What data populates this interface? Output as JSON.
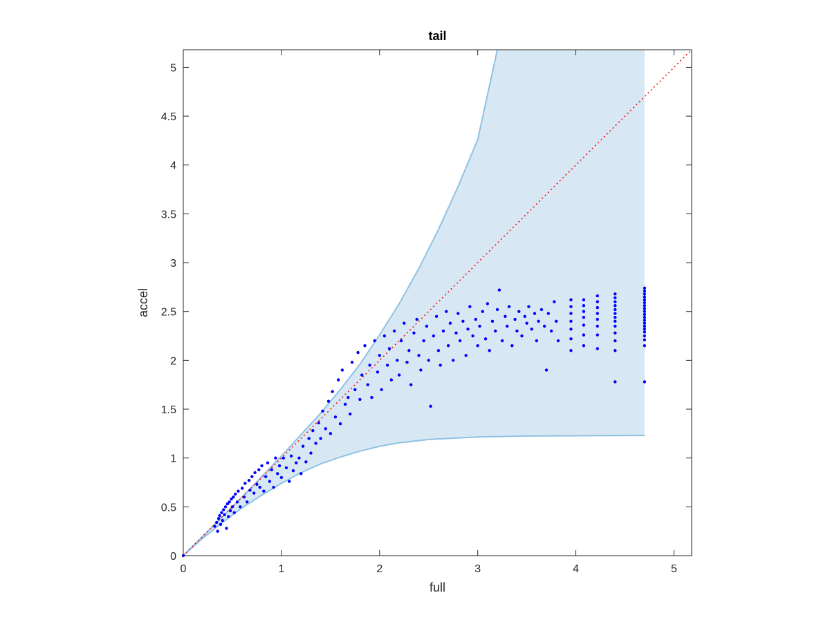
{
  "chart_data": {
    "type": "scatter",
    "title": "tail",
    "xlabel": "full",
    "ylabel": "accel",
    "xlim": [
      0,
      5.18
    ],
    "ylim": [
      0,
      5.18
    ],
    "xticks": [
      "0",
      "1",
      "2",
      "3",
      "4",
      "5"
    ],
    "yticks": [
      "0",
      "0.5",
      "1",
      "1.5",
      "2",
      "2.5",
      "3",
      "3.5",
      "4",
      "4.5",
      "5"
    ],
    "grid": false,
    "box": true,
    "reference_line": {
      "style": "dotted",
      "color": "#ff0000",
      "x": [
        0,
        5.18
      ],
      "y": [
        0,
        5.18
      ]
    },
    "band": {
      "fill": "#d7e8f4",
      "edge": "#8fc1e2",
      "upper": {
        "x": [
          0,
          0.2,
          0.4,
          0.6,
          0.8,
          1.0,
          1.2,
          1.4,
          1.6,
          1.8,
          2.0,
          2.2,
          2.4,
          2.6,
          2.8,
          3.0,
          3.2
        ],
        "y": [
          0,
          0.2,
          0.4,
          0.6,
          0.81,
          1.02,
          1.24,
          1.46,
          1.7,
          1.96,
          2.26,
          2.58,
          2.94,
          3.34,
          3.78,
          4.26,
          5.18
        ]
      },
      "lower": {
        "x": [
          0,
          0.2,
          0.4,
          0.6,
          0.8,
          1.0,
          1.2,
          1.4,
          1.6,
          1.8,
          2.0,
          2.2,
          2.5,
          3.0,
          3.5,
          4.0,
          4.7
        ],
        "y": [
          0,
          0.18,
          0.34,
          0.49,
          0.62,
          0.74,
          0.85,
          0.94,
          1.01,
          1.07,
          1.12,
          1.155,
          1.19,
          1.215,
          1.225,
          1.228,
          1.23
        ]
      },
      "x_max": 4.7
    },
    "series": [
      {
        "color": "#0000ff",
        "points": [
          [
            0.0,
            0.0
          ],
          [
            0.32,
            0.3
          ],
          [
            0.34,
            0.34
          ],
          [
            0.35,
            0.25
          ],
          [
            0.36,
            0.38
          ],
          [
            0.37,
            0.41
          ],
          [
            0.38,
            0.32
          ],
          [
            0.39,
            0.44
          ],
          [
            0.4,
            0.36
          ],
          [
            0.41,
            0.47
          ],
          [
            0.42,
            0.42
          ],
          [
            0.43,
            0.5
          ],
          [
            0.44,
            0.28
          ],
          [
            0.45,
            0.53
          ],
          [
            0.46,
            0.4
          ],
          [
            0.47,
            0.55
          ],
          [
            0.48,
            0.46
          ],
          [
            0.49,
            0.58
          ],
          [
            0.5,
            0.5
          ],
          [
            0.51,
            0.6
          ],
          [
            0.52,
            0.44
          ],
          [
            0.53,
            0.63
          ],
          [
            0.55,
            0.55
          ],
          [
            0.56,
            0.66
          ],
          [
            0.58,
            0.5
          ],
          [
            0.6,
            0.69
          ],
          [
            0.62,
            0.6
          ],
          [
            0.63,
            0.74
          ],
          [
            0.65,
            0.55
          ],
          [
            0.67,
            0.77
          ],
          [
            0.68,
            0.67
          ],
          [
            0.7,
            0.81
          ],
          [
            0.72,
            0.64
          ],
          [
            0.73,
            0.85
          ],
          [
            0.75,
            0.73
          ],
          [
            0.77,
            0.88
          ],
          [
            0.78,
            0.7
          ],
          [
            0.8,
            0.92
          ],
          [
            0.82,
            0.66
          ],
          [
            0.84,
            0.81
          ],
          [
            0.86,
            0.95
          ],
          [
            0.88,
            0.76
          ],
          [
            0.9,
            0.88
          ],
          [
            0.92,
            0.7
          ],
          [
            0.94,
            1.0
          ],
          [
            0.96,
            0.84
          ],
          [
            0.98,
            0.92
          ],
          [
            1.0,
            0.8
          ],
          [
            1.02,
            1.0
          ],
          [
            1.05,
            0.9
          ],
          [
            1.08,
            0.76
          ],
          [
            1.1,
            1.02
          ],
          [
            1.12,
            0.87
          ],
          [
            1.15,
            0.95
          ],
          [
            1.18,
            1.0
          ],
          [
            1.2,
            0.84
          ],
          [
            1.22,
            1.12
          ],
          [
            1.25,
            0.96
          ],
          [
            1.28,
            1.2
          ],
          [
            1.3,
            1.05
          ],
          [
            1.32,
            1.28
          ],
          [
            1.35,
            1.15
          ],
          [
            1.38,
            1.36
          ],
          [
            1.4,
            1.2
          ],
          [
            1.42,
            1.48
          ],
          [
            1.45,
            1.3
          ],
          [
            1.48,
            1.58
          ],
          [
            1.5,
            1.25
          ],
          [
            1.52,
            1.68
          ],
          [
            1.55,
            1.42
          ],
          [
            1.58,
            1.8
          ],
          [
            1.6,
            1.35
          ],
          [
            1.62,
            1.9
          ],
          [
            1.65,
            1.55
          ],
          [
            1.68,
            1.62
          ],
          [
            1.7,
            1.45
          ],
          [
            1.72,
            1.98
          ],
          [
            1.75,
            1.7
          ],
          [
            1.78,
            2.08
          ],
          [
            1.8,
            1.6
          ],
          [
            1.82,
            1.85
          ],
          [
            1.85,
            2.15
          ],
          [
            1.88,
            1.75
          ],
          [
            1.9,
            1.95
          ],
          [
            1.92,
            1.62
          ],
          [
            1.95,
            2.2
          ],
          [
            1.98,
            1.88
          ],
          [
            2.0,
            2.05
          ],
          [
            2.02,
            1.7
          ],
          [
            2.05,
            2.25
          ],
          [
            2.08,
            1.95
          ],
          [
            2.1,
            2.12
          ],
          [
            2.12,
            1.8
          ],
          [
            2.15,
            2.3
          ],
          [
            2.18,
            2.0
          ],
          [
            2.2,
            1.85
          ],
          [
            2.22,
            2.2
          ],
          [
            2.25,
            2.38
          ],
          [
            2.28,
            1.98
          ],
          [
            2.3,
            2.1
          ],
          [
            2.32,
            1.75
          ],
          [
            2.35,
            2.28
          ],
          [
            2.38,
            2.42
          ],
          [
            2.4,
            2.05
          ],
          [
            2.42,
            1.9
          ],
          [
            2.45,
            2.2
          ],
          [
            2.48,
            2.35
          ],
          [
            2.5,
            2.0
          ],
          [
            2.52,
            1.53
          ],
          [
            2.55,
            2.25
          ],
          [
            2.58,
            2.45
          ],
          [
            2.6,
            2.1
          ],
          [
            2.62,
            1.95
          ],
          [
            2.65,
            2.3
          ],
          [
            2.68,
            2.5
          ],
          [
            2.7,
            2.15
          ],
          [
            2.72,
            2.38
          ],
          [
            2.75,
            2.0
          ],
          [
            2.78,
            2.28
          ],
          [
            2.8,
            2.48
          ],
          [
            2.82,
            2.2
          ],
          [
            2.85,
            2.4
          ],
          [
            2.88,
            2.05
          ],
          [
            2.9,
            2.32
          ],
          [
            2.92,
            2.55
          ],
          [
            2.95,
            2.25
          ],
          [
            2.98,
            2.42
          ],
          [
            3.0,
            2.15
          ],
          [
            3.02,
            2.35
          ],
          [
            3.05,
            2.5
          ],
          [
            3.08,
            2.22
          ],
          [
            3.1,
            2.58
          ],
          [
            3.12,
            2.1
          ],
          [
            3.15,
            2.4
          ],
          [
            3.18,
            2.3
          ],
          [
            3.2,
            2.52
          ],
          [
            3.22,
            2.72
          ],
          [
            3.25,
            2.2
          ],
          [
            3.28,
            2.45
          ],
          [
            3.3,
            2.35
          ],
          [
            3.32,
            2.55
          ],
          [
            3.35,
            2.15
          ],
          [
            3.38,
            2.42
          ],
          [
            3.4,
            2.3
          ],
          [
            3.42,
            2.5
          ],
          [
            3.45,
            2.25
          ],
          [
            3.48,
            2.45
          ],
          [
            3.5,
            2.38
          ],
          [
            3.52,
            2.55
          ],
          [
            3.55,
            2.32
          ],
          [
            3.58,
            2.48
          ],
          [
            3.6,
            2.2
          ],
          [
            3.62,
            2.4
          ],
          [
            3.65,
            2.52
          ],
          [
            3.68,
            2.35
          ],
          [
            3.7,
            1.9
          ],
          [
            3.72,
            2.48
          ],
          [
            3.75,
            2.3
          ],
          [
            3.78,
            2.6
          ],
          [
            3.8,
            2.4
          ],
          [
            3.82,
            2.2
          ],
          [
            3.95,
            2.62
          ],
          [
            3.95,
            2.55
          ],
          [
            3.95,
            2.48
          ],
          [
            3.95,
            2.4
          ],
          [
            3.95,
            2.32
          ],
          [
            3.95,
            2.22
          ],
          [
            3.95,
            2.1
          ],
          [
            4.08,
            2.62
          ],
          [
            4.08,
            2.56
          ],
          [
            4.08,
            2.5
          ],
          [
            4.08,
            2.44
          ],
          [
            4.08,
            2.36
          ],
          [
            4.08,
            2.26
          ],
          [
            4.08,
            2.15
          ],
          [
            4.22,
            2.66
          ],
          [
            4.22,
            2.6
          ],
          [
            4.22,
            2.54
          ],
          [
            4.22,
            2.48
          ],
          [
            4.22,
            2.42
          ],
          [
            4.22,
            2.35
          ],
          [
            4.22,
            2.26
          ],
          [
            4.22,
            2.12
          ],
          [
            4.4,
            2.68
          ],
          [
            4.4,
            2.64
          ],
          [
            4.4,
            2.6
          ],
          [
            4.4,
            2.56
          ],
          [
            4.4,
            2.52
          ],
          [
            4.4,
            2.48
          ],
          [
            4.4,
            2.44
          ],
          [
            4.4,
            2.4
          ],
          [
            4.4,
            2.35
          ],
          [
            4.4,
            2.28
          ],
          [
            4.4,
            2.2
          ],
          [
            4.4,
            2.1
          ],
          [
            4.4,
            1.78
          ],
          [
            4.7,
            2.74
          ],
          [
            4.7,
            2.71
          ],
          [
            4.7,
            2.68
          ],
          [
            4.7,
            2.65
          ],
          [
            4.7,
            2.62
          ],
          [
            4.7,
            2.59
          ],
          [
            4.7,
            2.56
          ],
          [
            4.7,
            2.53
          ],
          [
            4.7,
            2.5
          ],
          [
            4.7,
            2.47
          ],
          [
            4.7,
            2.44
          ],
          [
            4.7,
            2.41
          ],
          [
            4.7,
            2.38
          ],
          [
            4.7,
            2.35
          ],
          [
            4.7,
            2.32
          ],
          [
            4.7,
            2.29
          ],
          [
            4.7,
            2.25
          ],
          [
            4.7,
            2.21
          ],
          [
            4.7,
            2.15
          ],
          [
            4.7,
            1.78
          ]
        ]
      }
    ]
  }
}
